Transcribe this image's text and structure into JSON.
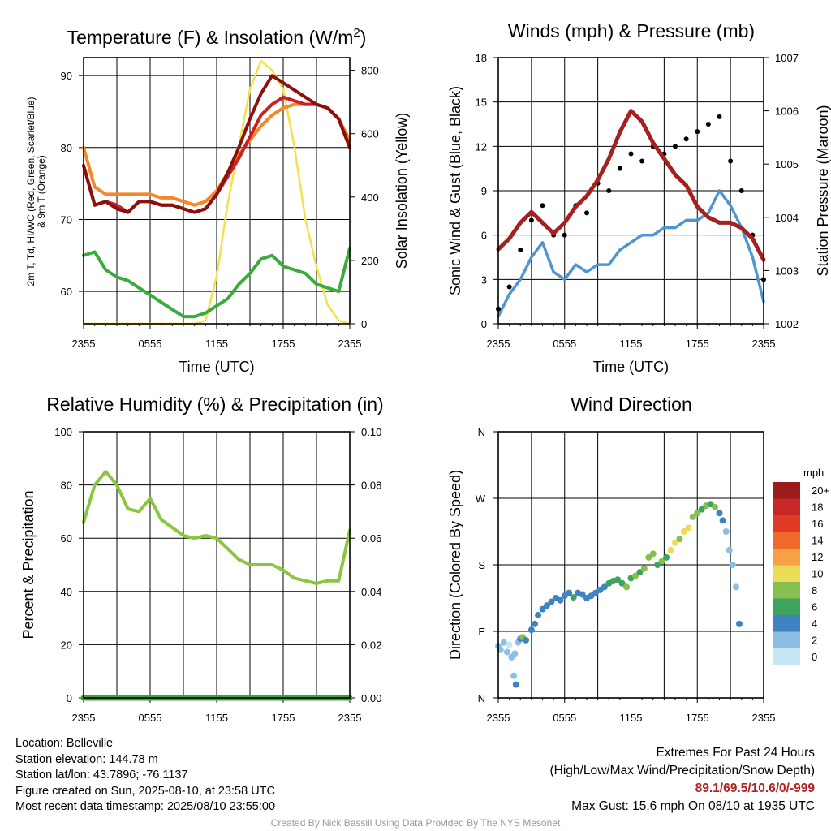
{
  "chart_data": [
    {
      "type": "line",
      "title": "Temperature (F) & Insolation (W/m²)",
      "xlabel": "Time (UTC)",
      "ylabel": "2m T, Td, HI/WC (Red, Green, Scarlet/Blue) & 9m T (Orange)",
      "ylabel_right": "Solar Insolation (Yellow)",
      "x_ticks": [
        "2355",
        "0555",
        "1155",
        "1755",
        "2355"
      ],
      "y_ticks": [
        "60",
        "70",
        "80",
        "90"
      ],
      "y2_ticks": [
        "0",
        "200",
        "400",
        "600",
        "800"
      ],
      "ylim": [
        55.5,
        92.5
      ],
      "y2lim": [
        0,
        840
      ],
      "x": [
        0,
        1,
        2,
        3,
        4,
        5,
        6,
        7,
        8,
        9,
        10,
        11,
        12,
        13,
        14,
        15,
        16,
        17,
        18,
        19,
        20,
        21,
        22,
        23,
        24
      ],
      "series": [
        {
          "name": "2m T",
          "color": "#cc2020",
          "axis": "left",
          "values": [
            77.5,
            72,
            72.5,
            72,
            71,
            72.5,
            72.5,
            72,
            72,
            71.5,
            71,
            71.5,
            73.5,
            76,
            78.5,
            81.5,
            84.5,
            86,
            87,
            86.5,
            86,
            86,
            85.5,
            84,
            80
          ]
        },
        {
          "name": "9m T",
          "color": "#f5862a",
          "axis": "left",
          "values": [
            80,
            74.5,
            73.5,
            73.5,
            73.5,
            73.5,
            73.5,
            73,
            73,
            72.5,
            72,
            72.5,
            74,
            76.5,
            79,
            81,
            83,
            84.5,
            85.5,
            86,
            86,
            86,
            85.5,
            84,
            81
          ]
        },
        {
          "name": "HI/WC",
          "color": "#8b1010",
          "axis": "left",
          "values": [
            77.5,
            72,
            72.5,
            71.5,
            71,
            72.5,
            72.5,
            72,
            72,
            71.5,
            71,
            71.5,
            73.5,
            76.5,
            80,
            84,
            87.5,
            90,
            89,
            88,
            87,
            86,
            85.5,
            84,
            80
          ]
        },
        {
          "name": "2m Td",
          "color": "#3cab3c",
          "axis": "left",
          "values": [
            65,
            65.5,
            63,
            62,
            61.5,
            60.5,
            59.5,
            58.5,
            57.5,
            56.5,
            56.5,
            57,
            58,
            59,
            61,
            62.5,
            64.5,
            65,
            63.5,
            63,
            62.5,
            61,
            60.5,
            60,
            66
          ]
        },
        {
          "name": "Solar Insolation",
          "color": "#f3e04a",
          "axis": "right",
          "values": [
            0,
            0,
            0,
            0,
            0,
            0,
            0,
            0,
            0,
            0,
            0,
            10,
            150,
            380,
            560,
            740,
            830,
            800,
            740,
            560,
            330,
            180,
            60,
            10,
            0
          ]
        }
      ]
    },
    {
      "type": "line",
      "title": "Winds (mph) & Pressure (mb)",
      "xlabel": "Time (UTC)",
      "ylabel": "Sonic Wind & Gust (Blue, Black)",
      "ylabel_right": "Station Pressure (Maroon)",
      "x_ticks": [
        "2355",
        "0555",
        "1155",
        "1755",
        "2355"
      ],
      "y_ticks": [
        "0",
        "3",
        "6",
        "9",
        "12",
        "15",
        "18"
      ],
      "y2_ticks": [
        "1002",
        "1003",
        "1004",
        "1005",
        "1006",
        "1007"
      ],
      "ylim": [
        0,
        18
      ],
      "y2lim": [
        1002,
        1007
      ],
      "x": [
        0,
        1,
        2,
        3,
        4,
        5,
        6,
        7,
        8,
        9,
        10,
        11,
        12,
        13,
        14,
        15,
        16,
        17,
        18,
        19,
        20,
        21,
        22,
        23,
        24
      ],
      "series": [
        {
          "name": "Sonic Wind",
          "color": "#4f95d0",
          "axis": "left",
          "values": [
            0.5,
            2,
            3,
            4.5,
            5.5,
            3.5,
            3,
            4,
            3.5,
            4,
            4,
            5,
            5.5,
            6,
            6,
            6.5,
            6.5,
            7,
            7,
            7.5,
            9,
            8,
            6.5,
            4.5,
            1.5
          ]
        },
        {
          "name": "Gust",
          "color": "#000000",
          "axis": "left",
          "marker": "dot",
          "values": [
            1,
            2.5,
            5,
            7,
            8,
            6,
            6,
            8,
            7.5,
            9.5,
            9,
            10.5,
            11.5,
            11,
            12,
            11.5,
            12,
            12.5,
            13,
            13.5,
            14,
            11,
            9,
            6,
            3
          ]
        },
        {
          "name": "Station Pressure",
          "color": "#a52020",
          "axis": "right",
          "values": [
            1003.4,
            1003.6,
            1003.9,
            1004.1,
            1003.9,
            1003.7,
            1003.9,
            1004.2,
            1004.4,
            1004.7,
            1005.1,
            1005.6,
            1006.0,
            1005.8,
            1005.4,
            1005.1,
            1004.8,
            1004.6,
            1004.2,
            1004.0,
            1003.9,
            1003.9,
            1003.8,
            1003.6,
            1003.2
          ]
        }
      ]
    },
    {
      "type": "line",
      "title": "Relative Humidity (%) & Precipitation (in)",
      "xlabel": "",
      "ylabel": "Percent & Precipitation",
      "x_ticks": [
        "2355",
        "0555",
        "1155",
        "1755",
        "2355"
      ],
      "y_ticks": [
        "0",
        "20",
        "40",
        "60",
        "80",
        "100"
      ],
      "y2_ticks": [
        "0.00",
        "0.02",
        "0.04",
        "0.06",
        "0.08",
        "0.10"
      ],
      "ylim": [
        0,
        100
      ],
      "y2lim": [
        0,
        0.1
      ],
      "x": [
        0,
        1,
        2,
        3,
        4,
        5,
        6,
        7,
        8,
        9,
        10,
        11,
        12,
        13,
        14,
        15,
        16,
        17,
        18,
        19,
        20,
        21,
        22,
        23,
        24
      ],
      "series": [
        {
          "name": "Relative Humidity",
          "color": "#8cc63f",
          "axis": "left",
          "values": [
            66,
            80,
            85,
            80,
            71,
            70,
            75,
            67,
            64,
            61,
            60,
            61,
            60,
            56,
            52,
            50,
            50,
            50,
            48,
            45,
            44,
            43,
            44,
            44,
            63
          ]
        },
        {
          "name": "Precipitation",
          "color": "#3ca03c",
          "axis": "right",
          "values": [
            0,
            0,
            0,
            0,
            0,
            0,
            0,
            0,
            0,
            0,
            0,
            0,
            0,
            0,
            0,
            0,
            0,
            0,
            0,
            0,
            0,
            0,
            0,
            0,
            0
          ]
        }
      ]
    },
    {
      "type": "scatter",
      "title": "Wind Direction",
      "xlabel": "",
      "ylabel": "Direction (Colored By Speed)",
      "x_ticks": [
        "2355",
        "0555",
        "1155",
        "1755",
        "2355"
      ],
      "y_ticks": [
        "N",
        "E",
        "S",
        "W",
        "N"
      ],
      "ylim": [
        0,
        360
      ],
      "colorbar": {
        "title": "mph",
        "labels": [
          "20+",
          "18",
          "16",
          "14",
          "12",
          "10",
          "8",
          "6",
          "4",
          "2",
          "0"
        ],
        "colors": [
          "#9c1b1b",
          "#c62828",
          "#de3a26",
          "#f06a2b",
          "#f7a146",
          "#eadc58",
          "#86bf4f",
          "#3ea35f",
          "#3f83c0",
          "#8dbfe4",
          "#c6e6f6"
        ]
      },
      "points": [
        {
          "x": 0.0,
          "y": 70,
          "speed": 1
        },
        {
          "x": 0.2,
          "y": 65,
          "speed": 1
        },
        {
          "x": 0.5,
          "y": 75,
          "speed": 1
        },
        {
          "x": 0.8,
          "y": 62,
          "speed": 1
        },
        {
          "x": 1.0,
          "y": 72,
          "speed": 0
        },
        {
          "x": 1.2,
          "y": 55,
          "speed": 1
        },
        {
          "x": 1.4,
          "y": 30,
          "speed": 2
        },
        {
          "x": 1.5,
          "y": 60,
          "speed": 1
        },
        {
          "x": 1.6,
          "y": 18,
          "speed": 3
        },
        {
          "x": 1.8,
          "y": 75,
          "speed": 2
        },
        {
          "x": 2.0,
          "y": 80,
          "speed": 3
        },
        {
          "x": 2.2,
          "y": 82,
          "speed": 7
        },
        {
          "x": 2.5,
          "y": 78,
          "speed": 4
        },
        {
          "x": 3.0,
          "y": 92,
          "speed": 3
        },
        {
          "x": 3.3,
          "y": 100,
          "speed": 4
        },
        {
          "x": 3.6,
          "y": 112,
          "speed": 4
        },
        {
          "x": 4.0,
          "y": 120,
          "speed": 4
        },
        {
          "x": 4.4,
          "y": 125,
          "speed": 4
        },
        {
          "x": 4.8,
          "y": 130,
          "speed": 4
        },
        {
          "x": 5.2,
          "y": 135,
          "speed": 4
        },
        {
          "x": 5.6,
          "y": 132,
          "speed": 4
        },
        {
          "x": 6.0,
          "y": 138,
          "speed": 4
        },
        {
          "x": 6.4,
          "y": 142,
          "speed": 4
        },
        {
          "x": 6.8,
          "y": 136,
          "speed": 5
        },
        {
          "x": 7.2,
          "y": 142,
          "speed": 4
        },
        {
          "x": 7.6,
          "y": 140,
          "speed": 4
        },
        {
          "x": 8.0,
          "y": 135,
          "speed": 3
        },
        {
          "x": 8.4,
          "y": 138,
          "speed": 4
        },
        {
          "x": 8.8,
          "y": 142,
          "speed": 4
        },
        {
          "x": 9.2,
          "y": 146,
          "speed": 4
        },
        {
          "x": 9.6,
          "y": 150,
          "speed": 4
        },
        {
          "x": 10.0,
          "y": 155,
          "speed": 5
        },
        {
          "x": 10.4,
          "y": 158,
          "speed": 6
        },
        {
          "x": 10.8,
          "y": 160,
          "speed": 6
        },
        {
          "x": 11.2,
          "y": 155,
          "speed": 5
        },
        {
          "x": 11.6,
          "y": 150,
          "speed": 7
        },
        {
          "x": 12.0,
          "y": 162,
          "speed": 6
        },
        {
          "x": 12.4,
          "y": 165,
          "speed": 7
        },
        {
          "x": 12.8,
          "y": 170,
          "speed": 6
        },
        {
          "x": 13.2,
          "y": 175,
          "speed": 7
        },
        {
          "x": 13.6,
          "y": 190,
          "speed": 7
        },
        {
          "x": 14.0,
          "y": 195,
          "speed": 8
        },
        {
          "x": 14.4,
          "y": 180,
          "speed": 6
        },
        {
          "x": 14.8,
          "y": 185,
          "speed": 7
        },
        {
          "x": 15.2,
          "y": 190,
          "speed": 6
        },
        {
          "x": 15.6,
          "y": 200,
          "speed": 9
        },
        {
          "x": 16.0,
          "y": 210,
          "speed": 10
        },
        {
          "x": 16.4,
          "y": 215,
          "speed": 8
        },
        {
          "x": 16.8,
          "y": 225,
          "speed": 10
        },
        {
          "x": 17.2,
          "y": 230,
          "speed": 9
        },
        {
          "x": 17.6,
          "y": 245,
          "speed": 8
        },
        {
          "x": 18.0,
          "y": 250,
          "speed": 7
        },
        {
          "x": 18.4,
          "y": 255,
          "speed": 6
        },
        {
          "x": 18.8,
          "y": 260,
          "speed": 7
        },
        {
          "x": 19.2,
          "y": 262,
          "speed": 6
        },
        {
          "x": 19.6,
          "y": 258,
          "speed": 7
        },
        {
          "x": 20.0,
          "y": 250,
          "speed": 4
        },
        {
          "x": 20.3,
          "y": 240,
          "speed": 3
        },
        {
          "x": 20.6,
          "y": 225,
          "speed": 2
        },
        {
          "x": 20.9,
          "y": 200,
          "speed": 1
        },
        {
          "x": 21.2,
          "y": 180,
          "speed": 1
        },
        {
          "x": 21.5,
          "y": 150,
          "speed": 2
        },
        {
          "x": 21.8,
          "y": 100,
          "speed": 3
        }
      ]
    }
  ],
  "footer": {
    "location": "Location: Belleville",
    "elevation": "Station elevation: 144.78 m",
    "latlon": "Station lat/lon: 43.7896; -76.1137",
    "created": "Figure created on Sun, 2025-08-10, at 23:58 UTC",
    "recent": "Most recent data timestamp: 2025/08/10 23:55:00",
    "extremes_title": "Extremes For Past 24 Hours",
    "extremes_legend": "(High/Low/Max Wind/Precipitation/Snow Depth)",
    "extremes_values": "89.1/69.5/10.6/0/-999",
    "max_gust": "Max Gust: 15.6 mph On 08/10 at 1935 UTC",
    "credit": "Created By Nick Bassill Using Data Provided By The NYS Mesonet"
  }
}
